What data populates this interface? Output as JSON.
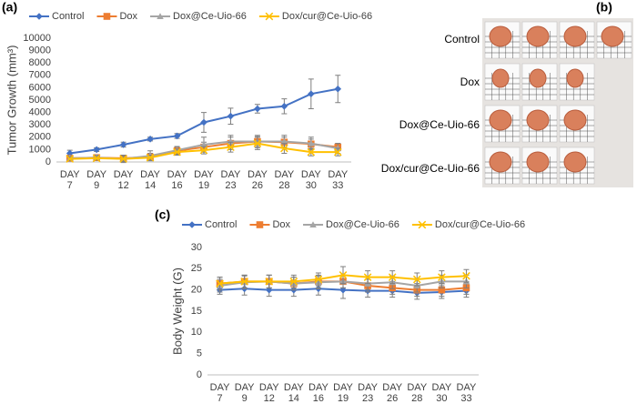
{
  "chart_data": [
    {
      "type": "line",
      "panel_label": "(a)",
      "y_label": "Tumor Growth (mm³)",
      "categories": [
        "DAY 7",
        "DAY 9",
        "DAY 12",
        "DAY 14",
        "DAY 16",
        "DAY 19",
        "DAY 23",
        "DAY 26",
        "DAY 28",
        "DAY 30",
        "DAY 33"
      ],
      "ylim": [
        0,
        10000
      ],
      "yticks": [
        0,
        1000,
        2000,
        3000,
        4000,
        5000,
        6000,
        7000,
        8000,
        9000,
        10000
      ],
      "grid": false,
      "series": [
        {
          "name": "Control",
          "color": "#4472c4",
          "marker": "diamond",
          "values": [
            700,
            1000,
            1400,
            1850,
            2100,
            3200,
            3700,
            4300,
            4500,
            5500,
            5900
          ],
          "errors": [
            250,
            150,
            200,
            150,
            200,
            800,
            650,
            350,
            600,
            1200,
            1100
          ]
        },
        {
          "name": "Dox",
          "color": "#ed7d31",
          "marker": "square",
          "values": [
            300,
            350,
            300,
            400,
            900,
            1200,
            1500,
            1650,
            1600,
            1450,
            1200
          ],
          "errors": [
            200,
            200,
            250,
            300,
            300,
            400,
            500,
            400,
            400,
            400,
            300
          ]
        },
        {
          "name": "Dox@Ce-Uio-66",
          "color": "#a5a5a5",
          "marker": "triangle",
          "values": [
            300,
            350,
            250,
            500,
            950,
            1400,
            1650,
            1650,
            1650,
            1500,
            1100
          ],
          "errors": [
            200,
            200,
            300,
            400,
            300,
            600,
            500,
            500,
            500,
            500,
            400
          ]
        },
        {
          "name": "Dox/cur@Ce-Uio-66",
          "color": "#ffc000",
          "marker": "x",
          "values": [
            250,
            300,
            250,
            350,
            800,
            950,
            1200,
            1500,
            1100,
            800,
            800
          ],
          "errors": [
            150,
            150,
            200,
            200,
            250,
            300,
            400,
            500,
            400,
            300,
            300
          ]
        }
      ]
    },
    {
      "type": "line",
      "panel_label": "(c)",
      "y_label": "Body Weight (G)",
      "categories": [
        "DAY 7",
        "DAY 9",
        "DAY 12",
        "DAY 14",
        "DAY 16",
        "DAY 19",
        "DAY 23",
        "DAY 26",
        "DAY 28",
        "DAY 30",
        "DAY 33"
      ],
      "ylim": [
        0,
        30
      ],
      "yticks": [
        0,
        5,
        10,
        15,
        20,
        25,
        30
      ],
      "grid": false,
      "series": [
        {
          "name": "Control",
          "color": "#4472c4",
          "marker": "diamond",
          "values": [
            20,
            20.3,
            20,
            20,
            20.3,
            20,
            19.8,
            19.8,
            19.3,
            19.5,
            19.8
          ],
          "errors": [
            1,
            1.5,
            1.5,
            1.5,
            1.5,
            2,
            1.5,
            1.5,
            1.5,
            1.5,
            1.5
          ]
        },
        {
          "name": "Dox",
          "color": "#ed7d31",
          "marker": "square",
          "values": [
            21.5,
            22,
            22,
            21.5,
            22,
            22,
            21,
            20.5,
            20,
            20,
            20.5
          ],
          "errors": [
            1.5,
            1.5,
            1.5,
            1.5,
            1.5,
            1.5,
            1.5,
            1.5,
            1.5,
            1.5,
            1.5
          ]
        },
        {
          "name": "Dox@Ce-Uio-66",
          "color": "#a5a5a5",
          "marker": "triangle",
          "values": [
            21,
            21.8,
            22,
            21.5,
            21.8,
            22,
            21.5,
            21.8,
            21,
            22,
            22
          ],
          "errors": [
            1.5,
            1.5,
            1.5,
            1.5,
            1.5,
            1.5,
            1.5,
            1.5,
            1.5,
            1.5,
            1.5
          ]
        },
        {
          "name": "Dox/cur@Ce-Uio-66",
          "color": "#ffc000",
          "marker": "x",
          "values": [
            21.5,
            22,
            22,
            22,
            22.5,
            23.5,
            23,
            23,
            22.5,
            23,
            23.3
          ],
          "errors": [
            1.5,
            1.5,
            1.5,
            1.5,
            1.5,
            2,
            1.5,
            1.5,
            1.5,
            1.5,
            1.5
          ]
        }
      ]
    }
  ],
  "photo": {
    "panel_label": "(b)",
    "row_labels": [
      "Control",
      "Dox",
      "Dox@Ce-Uio-66",
      "Dox/cur@Ce-Uio-66"
    ]
  }
}
